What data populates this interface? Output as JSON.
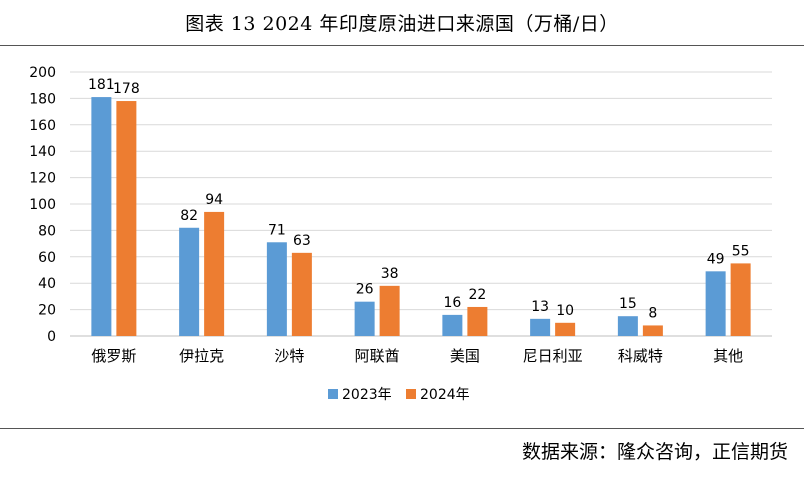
{
  "title": "图表 13   2024 年印度原油进口来源国（万桶/日）",
  "source": "数据来源：隆众咨询，正信期货",
  "colors": {
    "series_2023": "#5b9bd5",
    "series_2024": "#ed7d31",
    "grid": "#d9d9d9",
    "axis": "#bfbfbf"
  },
  "chart_data": {
    "type": "bar",
    "categories": [
      "俄罗斯",
      "伊拉克",
      "沙特",
      "阿联酋",
      "美国",
      "尼日利亚",
      "科威特",
      "其他"
    ],
    "series": [
      {
        "name": "2023年",
        "values": [
          181,
          82,
          71,
          26,
          16,
          13,
          15,
          49
        ]
      },
      {
        "name": "2024年",
        "values": [
          178,
          94,
          63,
          38,
          22,
          10,
          8,
          55
        ]
      }
    ],
    "ylim": [
      0,
      200
    ],
    "yticks": [
      0,
      20,
      40,
      60,
      80,
      100,
      120,
      140,
      160,
      180,
      200
    ],
    "grid": true,
    "legend": "bottom",
    "data_labels": true
  }
}
